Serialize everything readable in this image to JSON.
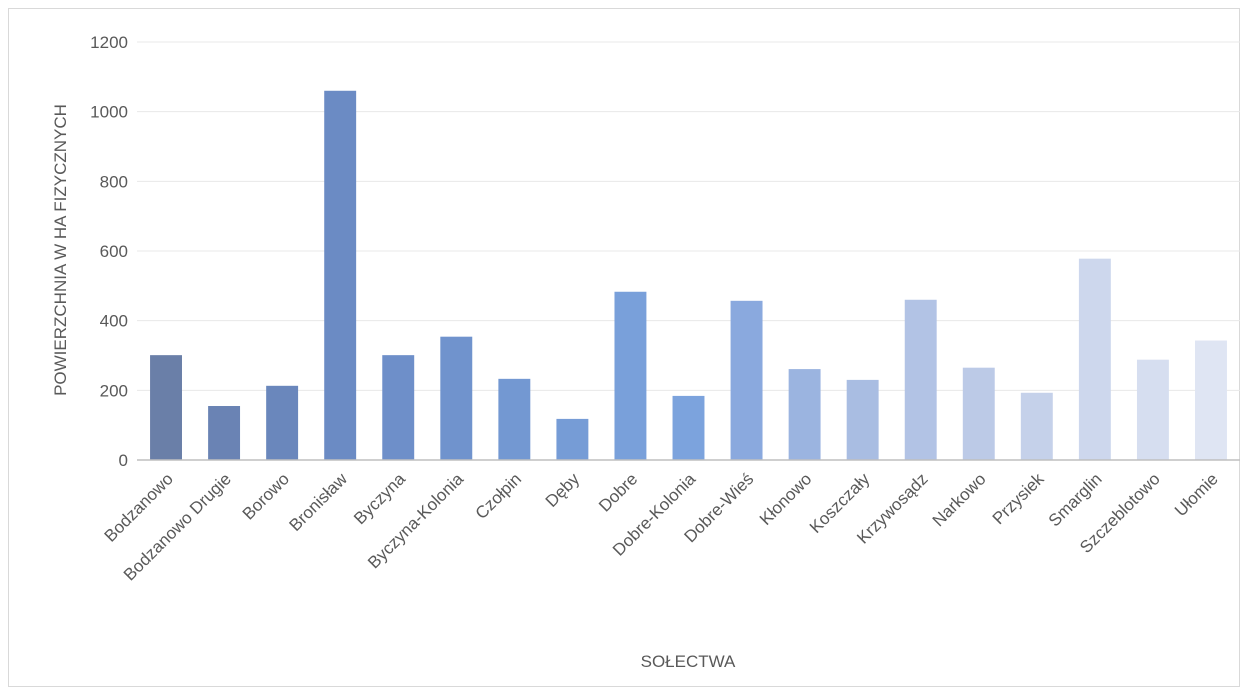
{
  "chart_data": {
    "type": "bar",
    "title": "",
    "xlabel": "SOŁECTWA",
    "ylabel": "POWIERZCHNIA W HA FIZYCZNYCH",
    "ylim": [
      0,
      1200
    ],
    "yticks": [
      0,
      200,
      400,
      600,
      800,
      1000,
      1200
    ],
    "grid": true,
    "legend": "none",
    "categories": [
      "Bodzanowo",
      "Bodzanowo Drugie",
      "Borowo",
      "Bronisław",
      "Byczyna",
      "Byczyna-Kolonia",
      "Czołpin",
      "Dęby",
      "Dobre",
      "Dobre-Kolonia",
      "Dobre-Wieś",
      "Kłonowo",
      "Koszczały",
      "Krzywosądz",
      "Narkowo",
      "Przysiek",
      "Smarglin",
      "Szczeblotowo",
      "Ułomie"
    ],
    "values": [
      301,
      155,
      213,
      1060,
      301,
      354,
      233,
      118,
      483,
      184,
      457,
      261,
      230,
      460,
      265,
      193,
      578,
      288,
      343
    ],
    "colors": [
      "#6a7fa8",
      "#6a83b4",
      "#6a87bc",
      "#6b8bc4",
      "#6e8fc9",
      "#7093cd",
      "#7398d2",
      "#769cd6",
      "#79a0da",
      "#7ca3dd",
      "#8aa9de",
      "#9bb4e0",
      "#a9bde2",
      "#b2c3e5",
      "#bccae7",
      "#c5d1ea",
      "#cdd7ed",
      "#d6def0",
      "#dfe5f3"
    ],
    "grid_color": "#e8e8e8",
    "axis_color": "#bfbfbf"
  }
}
